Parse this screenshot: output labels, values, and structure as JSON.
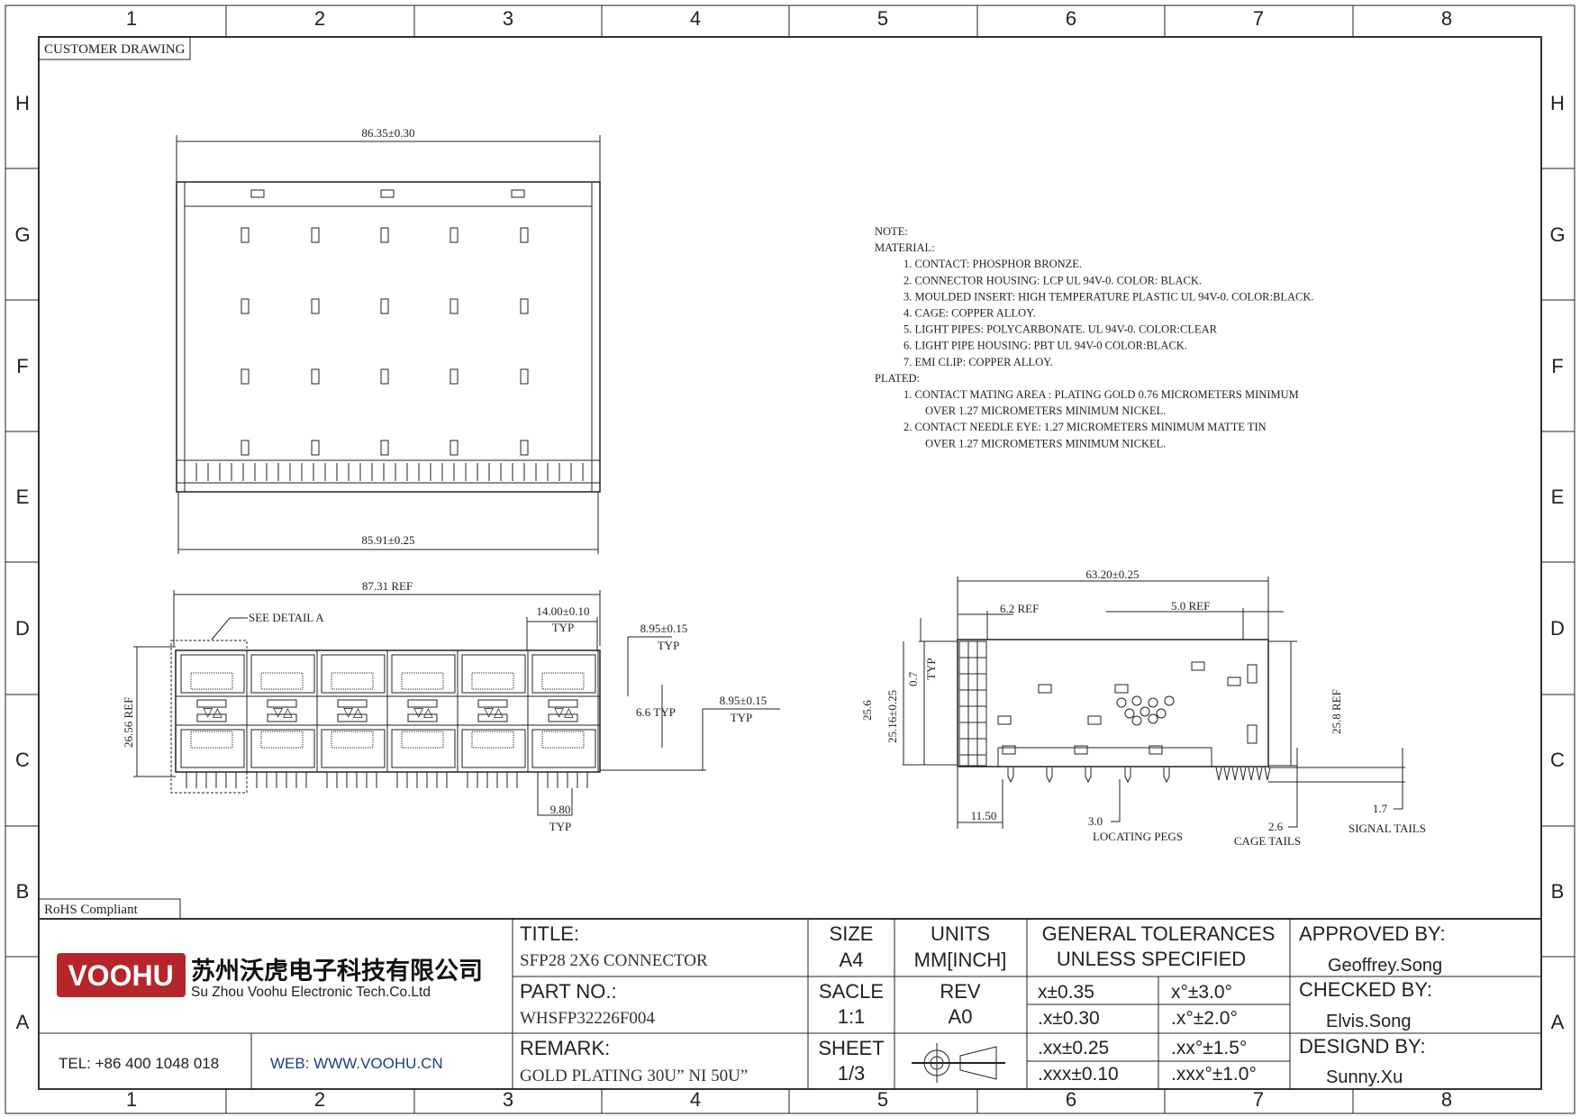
{
  "frame": {
    "columns": [
      "1",
      "2",
      "3",
      "4",
      "5",
      "6",
      "7",
      "8"
    ],
    "rows": [
      "H",
      "G",
      "F",
      "E",
      "D",
      "C",
      "B",
      "A"
    ],
    "customer_label": "CUSTOMER DRAWING",
    "rohs_label": "RoHS Compliant"
  },
  "top_view": {
    "width_top": "86.35±0.30",
    "width_bottom": "85.91±0.25"
  },
  "front_view": {
    "overall": "87.31 REF",
    "detail": "SEE DETAIL A",
    "pitch": "14.00±0.10",
    "pitch_typ": "TYP",
    "port_h1": "8.95±0.15",
    "port_h1_typ": "TYP",
    "gap": "6.6 TYP",
    "port_h2": "8.95±0.15",
    "port_h2_typ": "TYP",
    "height": "26.56 REF",
    "tail_pitch": "9.80",
    "tail_pitch_typ": "TYP"
  },
  "side_view": {
    "length": "63.20±0.25",
    "front": "6.2 REF",
    "rear": "5.0 REF",
    "lip": "0.7",
    "lip_typ": "TYP",
    "height_a": "25.6",
    "height_b": "25.16±0.25",
    "height_c": "25.8 REF",
    "peg_offset": "11.50",
    "peg_len": "3.0",
    "peg_label": "LOCATING PEGS",
    "cage_len": "2.6",
    "cage_label": "CAGE TAILS",
    "signal_len": "1.7",
    "signal_label": "SIGNAL TAILS"
  },
  "notes": [
    "NOTE:",
    "MATERIAL:",
    "1. CONTACT: PHOSPHOR BRONZE.",
    "2. CONNECTOR HOUSING: LCP UL 94V-0. COLOR: BLACK.",
    "3. MOULDED INSERT: HIGH TEMPERATURE PLASTIC UL 94V-0. COLOR:BLACK.",
    "4. CAGE: COPPER ALLOY.",
    "5. LIGHT PIPES: POLYCARBONATE. UL 94V-0. COLOR:CLEAR",
    "6. LIGHT PIPE HOUSING: PBT UL 94V-0 COLOR:BLACK.",
    "7. EMI CLIP: COPPER ALLOY.",
    "PLATED:",
    "1. CONTACT MATING AREA : PLATING GOLD 0.76 MICROMETERS MINIMUM",
    "OVER 1.27 MICROMETERS MINIMUM NICKEL.",
    "2. CONTACT NEEDLE EYE: 1.27 MICROMETERS MINIMUM MATTE TIN",
    "OVER 1.27 MICROMETERS MINIMUM NICKEL."
  ],
  "title_block": {
    "logo": "VOOHU",
    "company_cn": "苏州沃虎电子科技有限公司",
    "company_en": "Su Zhou Voohu Electronic Tech.Co.Ltd",
    "tel": "TEL: +86 400 1048 018",
    "web": "WEB: WWW.VOOHU.CN",
    "title_label": "TITLE:",
    "title": "SFP28 2X6 CONNECTOR",
    "part_label": "PART NO.:",
    "part": "WHSFP32226F004",
    "remark_label": "REMARK:",
    "remark": "GOLD PLATING 30U”  NI 50U”",
    "size_label": "SIZE",
    "size": "A4",
    "units_label": "UNITS",
    "units": "MM[INCH]",
    "scale_label": "SACLE",
    "scale": "1:1",
    "rev_label": "REV",
    "rev": "A0",
    "sheet_label": "SHEET",
    "sheet": "1/3",
    "tol_label1": "GENERAL TOLERANCES",
    "tol_label2": "UNLESS SPECIFIED",
    "tolerances": [
      [
        "x±0.35",
        "x°±3.0°"
      ],
      [
        ".x±0.30",
        ".x°±2.0°"
      ],
      [
        ".xx±0.25",
        ".xx°±1.5°"
      ],
      [
        ".xxx±0.10",
        ".xxx°±1.0°"
      ]
    ],
    "approved_label": "APPROVED BY:",
    "approved": "Geoffrey.Song",
    "checked_label": "CHECKED BY:",
    "checked": "Elvis.Song",
    "designed_label": "DESIGND BY:",
    "designed": "Sunny.Xu"
  },
  "colors": {
    "logo_red": "#b5252b",
    "web_blue": "#1f3f7a"
  }
}
